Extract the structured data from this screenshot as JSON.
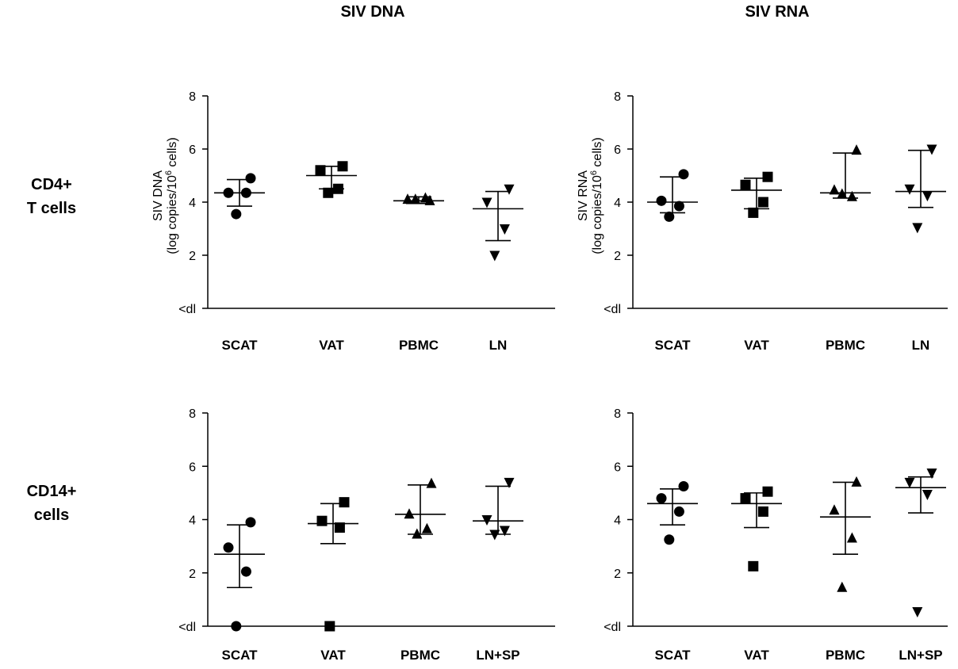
{
  "figure": {
    "column_titles": [
      "SIV DNA",
      "SIV RNA"
    ],
    "row_titles": [
      [
        "CD4+",
        "T cells"
      ],
      [
        "CD14+",
        "cells"
      ]
    ]
  },
  "chart_data": [
    {
      "type": "scatter",
      "panel": "CD4+ T cells / SIV DNA",
      "ylabel_line1": "SIV DNA",
      "ylabel_line2": "(log copies/10",
      "ylabel_sup": "6",
      "ylabel_tail": " cells)",
      "y_ticks": [
        "<dl",
        "2",
        "4",
        "6",
        "8"
      ],
      "ylim": [
        0,
        8
      ],
      "categories": [
        "SCAT",
        "VAT",
        "PBMC",
        "LN"
      ],
      "markers": [
        "circle",
        "square",
        "triangle-up",
        "triangle-down"
      ],
      "points": [
        [
          4.9,
          4.35,
          4.35,
          3.55
        ],
        [
          5.35,
          5.2,
          4.5,
          4.35
        ],
        [
          4.05,
          4.1,
          4.15,
          4.1
        ],
        [
          4.5,
          4.0,
          3.0,
          2.0
        ]
      ],
      "mean": [
        4.35,
        5.0,
        4.05,
        3.75
      ],
      "sd_upper": [
        4.85,
        5.35,
        4.2,
        4.4
      ],
      "sd_lower": [
        3.85,
        4.5,
        3.95,
        2.55
      ]
    },
    {
      "type": "scatter",
      "panel": "CD4+ T cells / SIV RNA",
      "ylabel_line1": "SIV RNA",
      "ylabel_line2": "(log copies/10",
      "ylabel_sup": "6",
      "ylabel_tail": " cells)",
      "y_ticks": [
        "<dl",
        "2",
        "4",
        "6",
        "8"
      ],
      "ylim": [
        0,
        8
      ],
      "categories": [
        "SCAT",
        "VAT",
        "PBMC",
        "LN"
      ],
      "markers": [
        "circle",
        "square",
        "triangle-up",
        "triangle-down"
      ],
      "points": [
        [
          5.05,
          4.05,
          3.85,
          3.45
        ],
        [
          4.95,
          4.65,
          4.0,
          3.6
        ],
        [
          5.95,
          4.45,
          4.2,
          4.3
        ],
        [
          6.0,
          4.5,
          4.25,
          3.05
        ]
      ],
      "mean": [
        4.0,
        4.45,
        4.35,
        4.4
      ],
      "sd_upper": [
        4.95,
        4.9,
        5.85,
        5.95
      ],
      "sd_lower": [
        3.6,
        3.75,
        4.15,
        3.8
      ]
    },
    {
      "type": "scatter",
      "panel": "CD14+ cells / SIV DNA",
      "y_ticks": [
        "<dl",
        "2",
        "4",
        "6",
        "8"
      ],
      "ylim": [
        0,
        8
      ],
      "categories": [
        "SCAT",
        "VAT",
        "PBMC",
        "LN+SP"
      ],
      "markers": [
        "circle",
        "square",
        "triangle-up",
        "triangle-down"
      ],
      "points": [
        [
          3.9,
          2.95,
          2.05,
          0.0
        ],
        [
          4.65,
          3.95,
          3.7,
          0.0
        ],
        [
          5.35,
          4.2,
          3.65,
          3.45
        ],
        [
          5.4,
          4.0,
          3.6,
          3.45
        ]
      ],
      "mean": [
        2.7,
        3.85,
        4.2,
        3.95
      ],
      "sd_upper": [
        3.8,
        4.6,
        5.3,
        5.25
      ],
      "sd_lower": [
        1.45,
        3.1,
        3.45,
        3.45
      ]
    },
    {
      "type": "scatter",
      "panel": "CD14+ cells / SIV RNA",
      "y_ticks": [
        "<dl",
        "2",
        "4",
        "6",
        "8"
      ],
      "ylim": [
        0,
        8
      ],
      "categories": [
        "SCAT",
        "VAT",
        "PBMC",
        "LN+SP"
      ],
      "markers": [
        "circle",
        "square",
        "triangle-up",
        "triangle-down"
      ],
      "points": [
        [
          5.25,
          4.8,
          4.3,
          3.25
        ],
        [
          5.05,
          4.8,
          4.3,
          2.25
        ],
        [
          5.4,
          4.35,
          3.3,
          1.45
        ],
        [
          5.75,
          5.4,
          4.95,
          0.55
        ]
      ],
      "mean": [
        4.6,
        4.6,
        4.1,
        5.2
      ],
      "sd_upper": [
        5.15,
        5.0,
        5.4,
        5.6
      ],
      "sd_lower": [
        3.8,
        3.7,
        2.7,
        4.25
      ]
    }
  ]
}
